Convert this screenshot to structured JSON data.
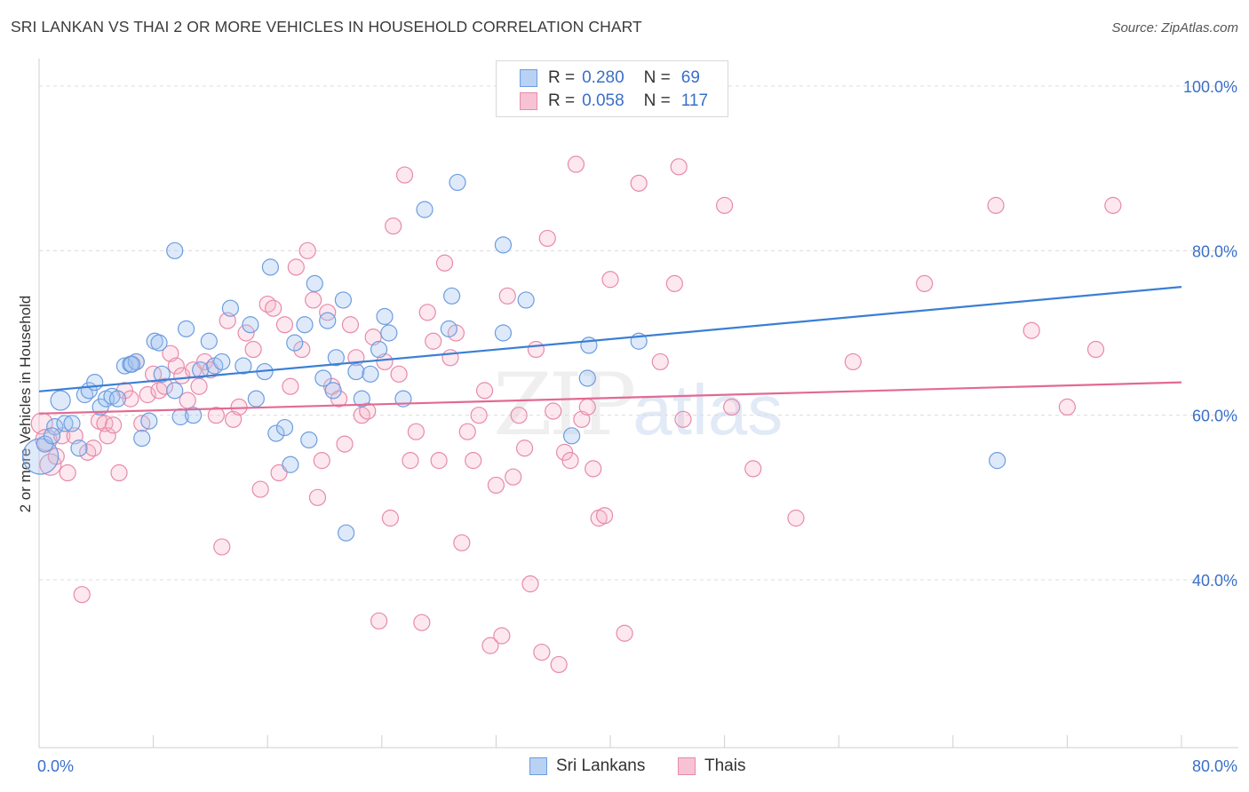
{
  "title": "SRI LANKAN VS THAI 2 OR MORE VEHICLES IN HOUSEHOLD CORRELATION CHART",
  "source": "Source: ZipAtlas.com",
  "watermark": {
    "zip": "ZIP",
    "atlas": "atlas"
  },
  "colors": {
    "blue": "#3a7fd5",
    "pink": "#e26a92",
    "blue_fill": "#b9d1f3",
    "pink_fill": "#f7c3d4",
    "axis_label": "#3a6fc7"
  },
  "legend": {
    "rows": [
      {
        "r_label": "R =",
        "r_value": "0.280",
        "n_label": "N =",
        "n_value": "69"
      },
      {
        "r_label": "R =",
        "r_value": "0.058",
        "n_label": "N =",
        "n_value": "117"
      }
    ]
  },
  "bottom_legend": [
    "Sri Lankans",
    "Thais"
  ],
  "chart_data": {
    "type": "scatter",
    "title": "SRI LANKAN VS THAI 2 OR MORE VEHICLES IN HOUSEHOLD CORRELATION CHART",
    "xlabel": "",
    "ylabel": "2 or more Vehicles in Household",
    "xlim": [
      0,
      80
    ],
    "ylim": [
      20,
      102
    ],
    "x_tick_labels": {
      "left": "0.0%",
      "right": "80.0%"
    },
    "y_ticks": [
      {
        "value": 100,
        "label": "100.0%"
      },
      {
        "value": 80,
        "label": "80.0%"
      },
      {
        "value": 60,
        "label": "60.0%"
      },
      {
        "value": 40,
        "label": "40.0%"
      }
    ],
    "grid": true,
    "series": [
      {
        "name": "Sri Lankans",
        "r": 0.28,
        "n": 69,
        "trend": {
          "x": [
            0,
            80
          ],
          "y": [
            62.9,
            75.6
          ]
        },
        "points": [
          [
            0.1,
            55.0
          ],
          [
            0.4,
            56.5
          ],
          [
            1.5,
            61.8
          ],
          [
            1.1,
            58.6
          ],
          [
            0.9,
            57.5
          ],
          [
            1.8,
            59.0
          ],
          [
            2.3,
            59.0
          ],
          [
            2.8,
            56.0
          ],
          [
            3.2,
            62.5
          ],
          [
            3.5,
            63.0
          ],
          [
            3.9,
            64.0
          ],
          [
            4.3,
            61.0
          ],
          [
            4.7,
            62.0
          ],
          [
            5.1,
            62.3
          ],
          [
            5.5,
            62.0
          ],
          [
            6.0,
            66.0
          ],
          [
            6.4,
            66.2
          ],
          [
            6.8,
            66.5
          ],
          [
            7.2,
            57.2
          ],
          [
            7.7,
            59.3
          ],
          [
            8.1,
            69.0
          ],
          [
            8.6,
            65.0
          ],
          [
            8.4,
            68.8
          ],
          [
            9.5,
            63.0
          ],
          [
            9.9,
            59.8
          ],
          [
            10.3,
            70.5
          ],
          [
            10.8,
            60.0
          ],
          [
            11.3,
            65.5
          ],
          [
            11.9,
            69.0
          ],
          [
            12.3,
            66.0
          ],
          [
            12.8,
            66.5
          ],
          [
            13.4,
            73.0
          ],
          [
            14.3,
            66.0
          ],
          [
            14.8,
            71.0
          ],
          [
            15.2,
            62.0
          ],
          [
            15.8,
            65.3
          ],
          [
            16.2,
            78.0
          ],
          [
            16.6,
            57.8
          ],
          [
            17.2,
            58.5
          ],
          [
            17.6,
            54.0
          ],
          [
            17.9,
            68.8
          ],
          [
            18.6,
            71.0
          ],
          [
            18.9,
            57.0
          ],
          [
            19.3,
            76.0
          ],
          [
            19.9,
            64.5
          ],
          [
            20.2,
            71.5
          ],
          [
            20.6,
            63.0
          ],
          [
            20.8,
            67.0
          ],
          [
            21.3,
            74.0
          ],
          [
            22.2,
            65.3
          ],
          [
            22.6,
            62.0
          ],
          [
            23.2,
            65.0
          ],
          [
            23.8,
            68.0
          ],
          [
            24.2,
            72.0
          ],
          [
            24.5,
            70.0
          ],
          [
            25.5,
            62.0
          ],
          [
            27.0,
            85.0
          ],
          [
            28.7,
            70.5
          ],
          [
            28.9,
            74.5
          ],
          [
            29.3,
            88.3
          ],
          [
            32.5,
            80.7
          ],
          [
            32.5,
            70.0
          ],
          [
            34.1,
            74.0
          ],
          [
            37.3,
            57.5
          ],
          [
            38.5,
            68.5
          ],
          [
            38.4,
            64.5
          ],
          [
            42.0,
            69.0
          ],
          [
            67.1,
            54.5
          ],
          [
            21.5,
            45.7
          ],
          [
            9.5,
            80.0
          ],
          [
            6.5,
            66.2
          ]
        ]
      },
      {
        "name": "Thais",
        "r": 0.058,
        "n": 117,
        "trend": {
          "x": [
            0,
            80
          ],
          "y": [
            60.2,
            64.0
          ]
        },
        "points": [
          [
            0.2,
            59.0
          ],
          [
            0.5,
            57.0
          ],
          [
            0.8,
            54.0
          ],
          [
            1.2,
            55.0
          ],
          [
            1.6,
            57.5
          ],
          [
            2.0,
            53.0
          ],
          [
            2.5,
            57.5
          ],
          [
            3.0,
            38.2
          ],
          [
            3.4,
            55.5
          ],
          [
            3.8,
            56.0
          ],
          [
            4.2,
            59.3
          ],
          [
            4.6,
            59.0
          ],
          [
            4.8,
            57.5
          ],
          [
            5.2,
            58.8
          ],
          [
            5.6,
            53.0
          ],
          [
            6.0,
            63.0
          ],
          [
            6.4,
            62.0
          ],
          [
            6.8,
            66.5
          ],
          [
            7.2,
            59.0
          ],
          [
            7.6,
            62.5
          ],
          [
            8.0,
            65.0
          ],
          [
            8.4,
            63.0
          ],
          [
            8.8,
            63.5
          ],
          [
            9.2,
            67.5
          ],
          [
            9.6,
            66.0
          ],
          [
            10.0,
            64.8
          ],
          [
            10.4,
            61.8
          ],
          [
            10.8,
            65.5
          ],
          [
            11.2,
            63.5
          ],
          [
            11.6,
            66.5
          ],
          [
            12.0,
            65.5
          ],
          [
            12.4,
            60.0
          ],
          [
            12.8,
            44.0
          ],
          [
            13.2,
            71.5
          ],
          [
            13.6,
            59.5
          ],
          [
            14.0,
            61.0
          ],
          [
            14.5,
            70.0
          ],
          [
            15.0,
            68.0
          ],
          [
            15.5,
            51.0
          ],
          [
            16.0,
            73.5
          ],
          [
            16.4,
            73.0
          ],
          [
            16.8,
            53.0
          ],
          [
            17.2,
            71.0
          ],
          [
            17.6,
            63.5
          ],
          [
            18.0,
            78.0
          ],
          [
            18.4,
            68.0
          ],
          [
            18.8,
            80.0
          ],
          [
            19.2,
            74.0
          ],
          [
            19.5,
            50.0
          ],
          [
            19.8,
            54.5
          ],
          [
            20.2,
            72.5
          ],
          [
            20.5,
            63.5
          ],
          [
            21.0,
            62.0
          ],
          [
            21.4,
            56.5
          ],
          [
            21.8,
            71.0
          ],
          [
            22.2,
            67.0
          ],
          [
            22.6,
            60.0
          ],
          [
            23.0,
            60.5
          ],
          [
            23.4,
            69.5
          ],
          [
            23.8,
            35.0
          ],
          [
            24.2,
            66.5
          ],
          [
            24.6,
            47.5
          ],
          [
            24.8,
            83.0
          ],
          [
            25.2,
            65.0
          ],
          [
            25.6,
            89.2
          ],
          [
            26.0,
            54.5
          ],
          [
            26.4,
            58.0
          ],
          [
            26.8,
            34.8
          ],
          [
            27.2,
            72.5
          ],
          [
            27.6,
            69.0
          ],
          [
            28.0,
            54.5
          ],
          [
            28.4,
            78.5
          ],
          [
            28.8,
            67.0
          ],
          [
            29.2,
            70.0
          ],
          [
            29.6,
            44.5
          ],
          [
            30.0,
            58.0
          ],
          [
            30.4,
            54.5
          ],
          [
            30.8,
            60.0
          ],
          [
            31.2,
            63.0
          ],
          [
            31.6,
            32.0
          ],
          [
            32.0,
            51.5
          ],
          [
            32.4,
            33.2
          ],
          [
            32.8,
            74.5
          ],
          [
            33.2,
            52.5
          ],
          [
            33.6,
            60.0
          ],
          [
            34.0,
            56.0
          ],
          [
            34.4,
            39.5
          ],
          [
            34.8,
            68.0
          ],
          [
            35.2,
            31.2
          ],
          [
            35.6,
            81.5
          ],
          [
            36.0,
            60.5
          ],
          [
            36.4,
            29.7
          ],
          [
            36.8,
            55.5
          ],
          [
            37.2,
            54.5
          ],
          [
            37.6,
            90.5
          ],
          [
            38.0,
            59.5
          ],
          [
            38.4,
            61.0
          ],
          [
            38.8,
            53.5
          ],
          [
            39.2,
            47.5
          ],
          [
            39.6,
            47.8
          ],
          [
            40.0,
            76.5
          ],
          [
            41.0,
            33.5
          ],
          [
            42.0,
            88.2
          ],
          [
            43.5,
            66.5
          ],
          [
            44.5,
            76.0
          ],
          [
            44.8,
            90.2
          ],
          [
            45.1,
            59.5
          ],
          [
            48.0,
            85.5
          ],
          [
            48.5,
            61.0
          ],
          [
            50.0,
            53.5
          ],
          [
            53.0,
            47.5
          ],
          [
            57.0,
            66.5
          ],
          [
            62.0,
            76.0
          ],
          [
            67.0,
            85.5
          ],
          [
            69.5,
            70.3
          ],
          [
            72.0,
            61.0
          ],
          [
            74.0,
            68.0
          ],
          [
            75.2,
            85.5
          ]
        ]
      }
    ]
  }
}
